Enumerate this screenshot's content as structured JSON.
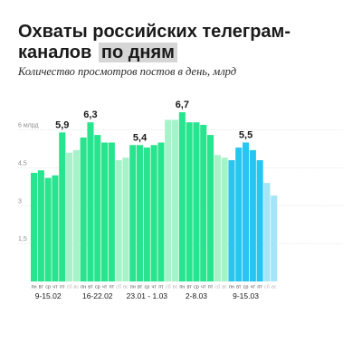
{
  "header": {
    "title_line1": "Охваты российских телеграм-",
    "title_line2_prefix": "каналов",
    "title_line2_highlight": "по дням",
    "subtitle": "Количество просмотров постов в день, млрд"
  },
  "colors": {
    "weekday": "#27e58e",
    "weekend": "#a6f2c9",
    "last_weekday": "#27c6f0",
    "last_weekend": "#a6e4f7"
  },
  "chart_data": {
    "type": "bar",
    "ylim": [
      0,
      6.7
    ],
    "yticks": [
      {
        "value": 6,
        "label": "6 млрд"
      },
      {
        "value": 4.5,
        "label": "4,5"
      },
      {
        "value": 3,
        "label": "3"
      },
      {
        "value": 1.5,
        "label": "1,5"
      }
    ],
    "grid": "horizontal",
    "weeks": [
      {
        "label": "9-15.02",
        "days": [
          "пн",
          "вт",
          "ср",
          "чт",
          "пт",
          "сб",
          "вс"
        ],
        "values": [
          4.3,
          4.4,
          4.1,
          4.2,
          5.9,
          5.1,
          5.2
        ]
      },
      {
        "label": "16-22.02",
        "days": [
          "пн",
          "вт",
          "ср",
          "чт",
          "пт",
          "сб",
          "вс"
        ],
        "values": [
          5.7,
          6.3,
          5.8,
          5.5,
          5.5,
          4.8,
          4.9
        ]
      },
      {
        "label": "23.01 - 1.03",
        "days": [
          "пн",
          "вт",
          "ср",
          "чт",
          "пт",
          "сб",
          "вс"
        ],
        "values": [
          5.4,
          5.4,
          5.3,
          5.4,
          5.5,
          6.4,
          6.4
        ]
      },
      {
        "label": "2-8.03",
        "days": [
          "пн",
          "вт",
          "ср",
          "чт",
          "пт",
          "сб",
          "вс"
        ],
        "values": [
          6.7,
          6.3,
          6.3,
          6.2,
          5.8,
          5.0,
          4.9
        ]
      },
      {
        "label": "9-15.03",
        "days": [
          "пн",
          "вт",
          "ср",
          "чт",
          "пт",
          "сб",
          "вс"
        ],
        "values": [
          4.8,
          5.3,
          5.5,
          5.2,
          4.8,
          3.9,
          3.4
        ]
      }
    ],
    "value_labels": [
      {
        "week": 0,
        "day": 4,
        "text": "5,9"
      },
      {
        "week": 1,
        "day": 1,
        "text": "6,3"
      },
      {
        "week": 2,
        "day": 1,
        "text": "5,4"
      },
      {
        "week": 3,
        "day": 0,
        "text": "6,7"
      },
      {
        "week": 4,
        "day": 2,
        "text": "5,5"
      }
    ]
  }
}
